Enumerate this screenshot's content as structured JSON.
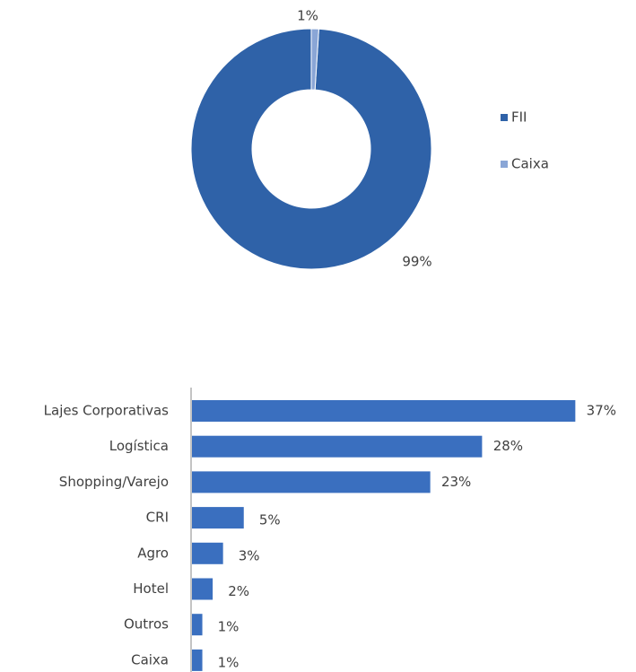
{
  "chart_data": [
    {
      "type": "donut",
      "categories": [
        "FII",
        "Caixa"
      ],
      "values": [
        99,
        1
      ],
      "value_labels": [
        "99%",
        "1%"
      ],
      "colors": [
        "#2f62a8",
        "#8aa6d6"
      ],
      "legend": "right"
    },
    {
      "type": "hbar",
      "categories": [
        "Lajes Corporativas",
        "Logística",
        "Shopping/Varejo",
        "CRI",
        "Agro",
        "Hotel",
        "Outros",
        "Caixa"
      ],
      "values": [
        37,
        28,
        23,
        5,
        3,
        2,
        1,
        1
      ],
      "value_labels": [
        "37%",
        "28%",
        "23%",
        "5%",
        "3%",
        "2%",
        "1%",
        "1%"
      ],
      "color": "#3a6fbf"
    }
  ]
}
